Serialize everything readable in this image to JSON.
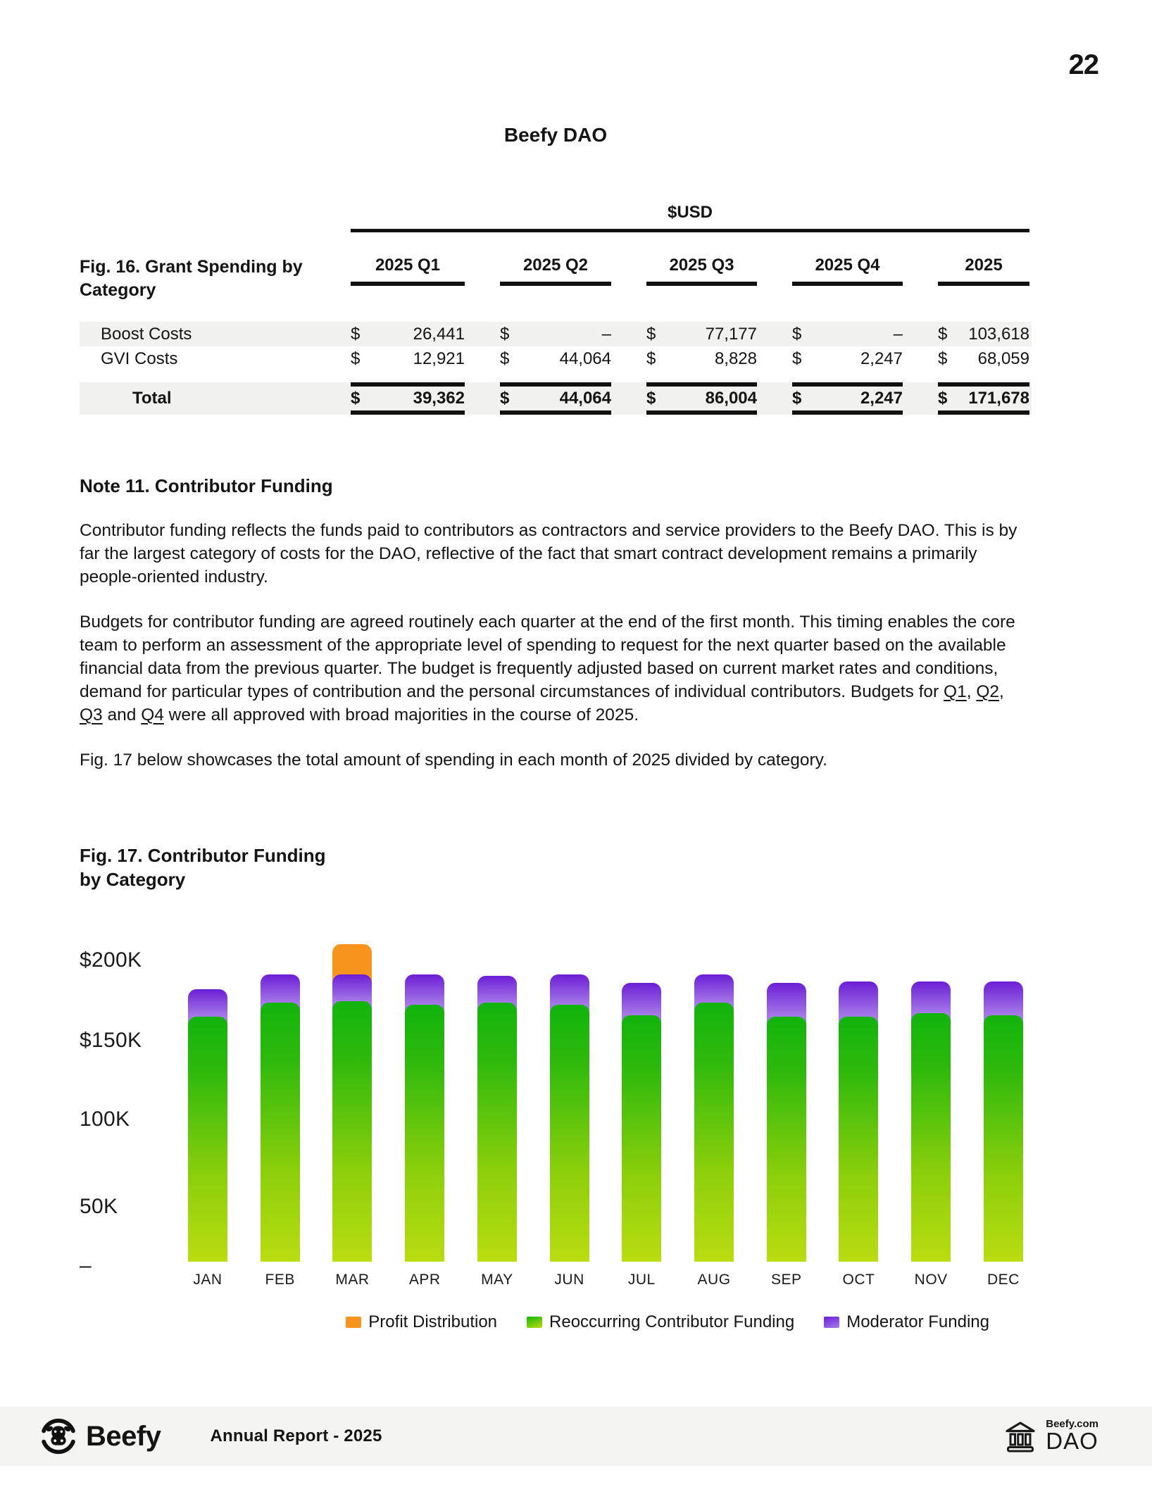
{
  "page": {
    "number": "22",
    "title": "Beefy DAO"
  },
  "table": {
    "fig_label": "Fig. 16. Grant Spending by Category",
    "currency_header": "$USD",
    "currency_symbol": "$",
    "columns": [
      "2025 Q1",
      "2025 Q2",
      "2025 Q3",
      "2025 Q4",
      "2025"
    ],
    "rows": [
      {
        "label": "Boost Costs",
        "values": [
          "26,441",
          "–",
          "77,177",
          "–",
          "103,618"
        ]
      },
      {
        "label": "GVI Costs",
        "values": [
          "12,921",
          "44,064",
          "8,828",
          "2,247",
          "68,059"
        ]
      }
    ],
    "total_row": {
      "label": "Total",
      "values": [
        "39,362",
        "44,064",
        "86,004",
        "2,247",
        "171,678"
      ]
    }
  },
  "note": {
    "heading": "Note 11. Contributor Funding",
    "paragraph1": "Contributor funding reflects the funds paid to contributors as contractors and service providers to the Beefy DAO. This is by far the largest category of costs for the DAO, reflective of the fact that smart contract development remains a primarily people-oriented industry.",
    "paragraph2": {
      "body": "Budgets for contributor funding are agreed routinely each quarter at the end of the first month. This timing enables the core team to perform an assessment of the appropriate level of spending to request for the next quarter based on the available financial data from the previous quarter. The budget is frequently adjusted based on current market rates and conditions, demand for particular types of contribution and the personal circumstances of individual contributors. Budgets for ",
      "q1": "Q1",
      "sep1": ", ",
      "q2": "Q2",
      "sep2": ", ",
      "q3": "Q3",
      "sep3": " and ",
      "q4": "Q4",
      "tail": " were all approved with broad majorities in the course of 2025."
    },
    "paragraph3": "Fig. 17 below showcases the total amount of spending in each month of 2025 divided by category."
  },
  "chart": {
    "fig_label_line1": "Fig. 17. Contributor Funding",
    "fig_label_line2": "by Category"
  },
  "chart_data": {
    "type": "bar",
    "stacked": true,
    "title": "Fig. 17. Contributor Funding by Category",
    "unit": "USD thousands (approx., read from axis)",
    "categories": [
      "JAN",
      "FEB",
      "MAR",
      "APR",
      "MAY",
      "JUN",
      "JUL",
      "AUG",
      "SEP",
      "OCT",
      "NOV",
      "DEC"
    ],
    "series": [
      {
        "name": "Reoccurring Contributor Funding",
        "color": "#12b40c",
        "color2": "#b9dd10",
        "gradient": [
          "#12b40c 0%",
          "#2eb90c 22%",
          "#8ccf0b 65%",
          "#b9dd10 100%"
        ],
        "values": [
          162,
          171,
          172,
          170,
          171,
          170,
          163,
          171,
          162,
          162,
          164,
          163
        ]
      },
      {
        "name": "Moderator Funding",
        "color": "#6c1ed6",
        "color2": "#a57ae8",
        "values": [
          18,
          19,
          18,
          20,
          18,
          20,
          21,
          19,
          22,
          23,
          21,
          22
        ]
      },
      {
        "name": "Profit Distribution",
        "color": "#f7941d",
        "color2": "#f7941d",
        "values": [
          0,
          0,
          20,
          0,
          0,
          0,
          0,
          0,
          0,
          0,
          0,
          0
        ]
      }
    ],
    "y_ticks": [
      {
        "label": "$200K",
        "value": 200
      },
      {
        "label": "$150K",
        "value": 150
      },
      {
        "label": "100K",
        "value": 100
      },
      {
        "label": "50K",
        "value": 50
      },
      {
        "label": "–",
        "value": 0
      }
    ],
    "ylim": [
      0,
      200
    ],
    "grid": false,
    "legend_position": "bottom",
    "legend_order": [
      "Profit Distribution",
      "Reoccurring Contributor Funding",
      "Moderator Funding"
    ]
  },
  "footer": {
    "brand": "Beefy",
    "report_label": "Annual Report -  2025",
    "dao_site": "Beefy.com",
    "dao_label": "DAO",
    "logo_icon": "cow-circle-logo",
    "dao_icon": "bank-columns-icon"
  }
}
